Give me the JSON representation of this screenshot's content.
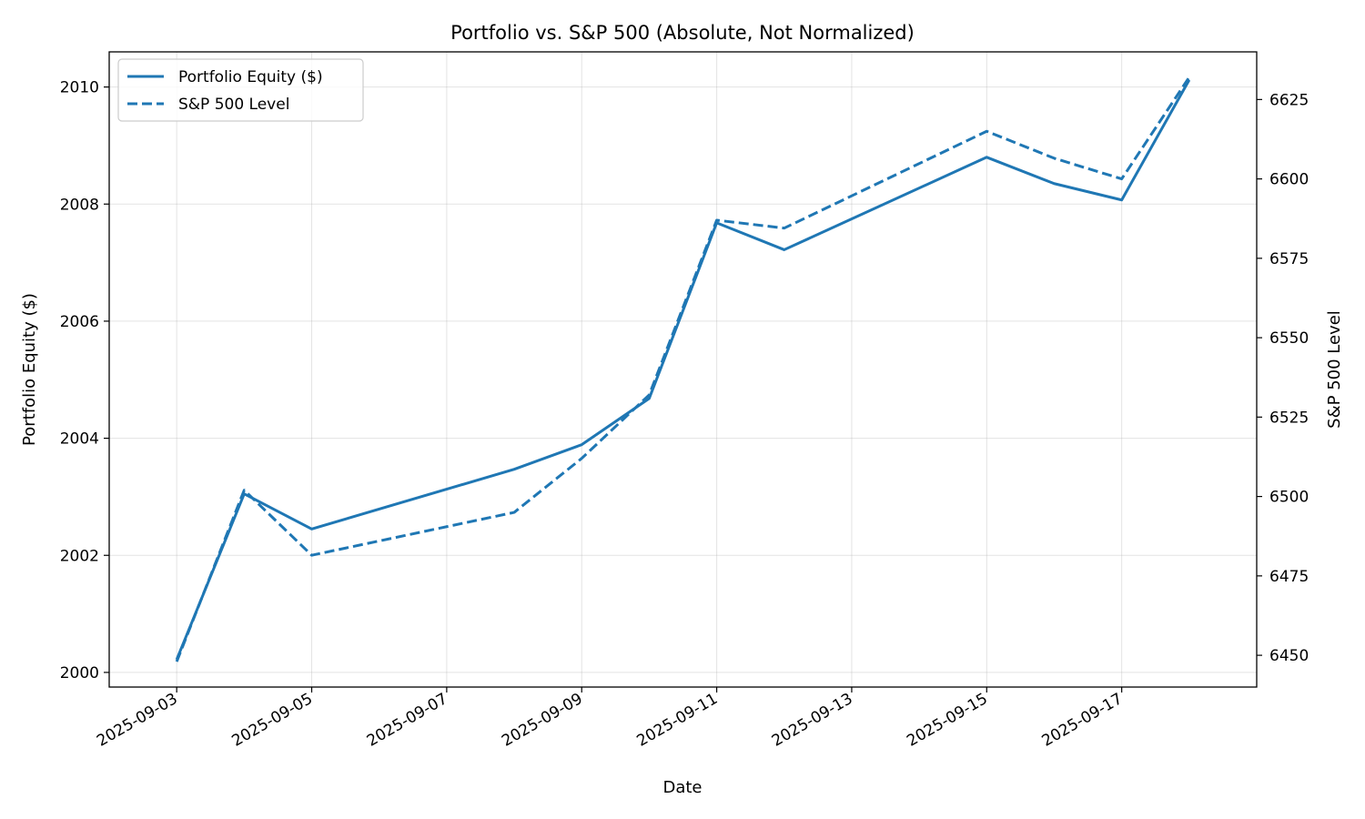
{
  "chart_data": {
    "type": "line",
    "title": "Portfolio vs. S&P 500 (Absolute, Not Normalized)",
    "xlabel": "Date",
    "ylabel_left": "Portfolio Equity ($)",
    "ylabel_right": "S&P 500 Level",
    "x": [
      "2025-09-03",
      "2025-09-04",
      "2025-09-05",
      "2025-09-08",
      "2025-09-09",
      "2025-09-10",
      "2025-09-11",
      "2025-09-12",
      "2025-09-15",
      "2025-09-16",
      "2025-09-17",
      "2025-09-18"
    ],
    "xticks": [
      "2025-09-03",
      "2025-09-05",
      "2025-09-07",
      "2025-09-09",
      "2025-09-11",
      "2025-09-13",
      "2025-09-15",
      "2025-09-17"
    ],
    "xlim": [
      "2025-09-02",
      "2025-09-19"
    ],
    "ylim_left": [
      1999.75,
      2010.6
    ],
    "yticks_left": [
      2000,
      2002,
      2004,
      2006,
      2008,
      2010
    ],
    "ylim_right": [
      6440,
      6640
    ],
    "yticks_right": [
      6450,
      6475,
      6500,
      6525,
      6550,
      6575,
      6600,
      6625
    ],
    "grid": true,
    "legend": "top-left",
    "color": "#1f77b4",
    "series": [
      {
        "name": "Portfolio Equity ($)",
        "axis": "left",
        "style": "solid",
        "values": [
          2000.22,
          2003.05,
          2002.45,
          2003.47,
          2003.89,
          2004.68,
          2007.68,
          2007.22,
          2008.8,
          2008.35,
          2008.07,
          2010.12
        ]
      },
      {
        "name": "S&P 500 Level",
        "axis": "right",
        "style": "dashed",
        "values": [
          6448,
          6502,
          6481.5,
          6495,
          6512,
          6532,
          6587,
          6584.5,
          6615,
          6606.5,
          6600,
          6632
        ]
      }
    ]
  }
}
